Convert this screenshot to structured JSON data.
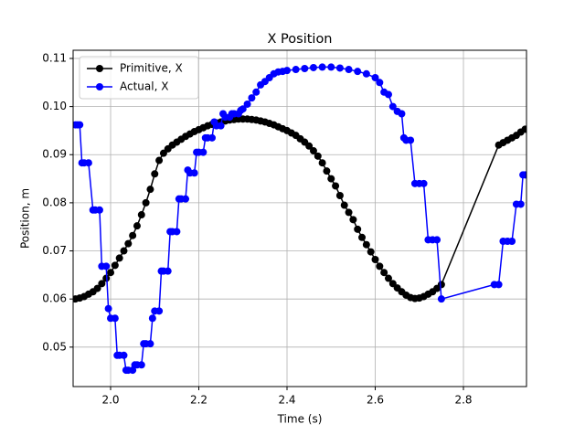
{
  "chart_data": {
    "type": "line",
    "title": "X Position",
    "xlabel": "Time (s)",
    "ylabel": "Position, m",
    "xlim": [
      1.915,
      2.943
    ],
    "ylim": [
      0.0418,
      0.1117
    ],
    "xticks": [
      {
        "value": 2.0,
        "label": "2.0"
      },
      2.2,
      2.4,
      2.6,
      2.8
    ],
    "yticks": [
      0.05,
      0.06,
      0.07,
      0.08,
      0.09,
      {
        "value": 0.1,
        "label": "0.10"
      },
      0.11
    ],
    "grid": true,
    "legend": "upper left",
    "series": [
      {
        "name": "Primitive, X",
        "color": "#000000",
        "x": [
          1.92,
          1.93,
          1.94,
          1.95,
          1.96,
          1.97,
          1.98,
          1.99,
          2.0,
          2.01,
          2.02,
          2.03,
          2.04,
          2.05,
          2.06,
          2.07,
          2.08,
          2.09,
          2.1,
          2.11,
          2.12,
          2.13,
          2.14,
          2.15,
          2.16,
          2.17,
          2.18,
          2.19,
          2.2,
          2.21,
          2.22,
          2.23,
          2.24,
          2.25,
          2.26,
          2.27,
          2.28,
          2.29,
          2.3,
          2.31,
          2.32,
          2.33,
          2.34,
          2.35,
          2.36,
          2.37,
          2.38,
          2.39,
          2.4,
          2.41,
          2.42,
          2.43,
          2.44,
          2.45,
          2.46,
          2.47,
          2.48,
          2.49,
          2.5,
          2.51,
          2.52,
          2.53,
          2.54,
          2.55,
          2.56,
          2.57,
          2.58,
          2.59,
          2.6,
          2.61,
          2.62,
          2.63,
          2.64,
          2.65,
          2.66,
          2.67,
          2.68,
          2.69,
          2.7,
          2.71,
          2.72,
          2.73,
          2.74,
          2.75,
          2.88,
          2.89,
          2.9,
          2.91,
          2.92,
          2.93,
          2.94
        ],
        "values": [
          0.06,
          0.0602,
          0.0605,
          0.061,
          0.0615,
          0.0622,
          0.0632,
          0.0643,
          0.0655,
          0.067,
          0.0685,
          0.07,
          0.0715,
          0.0732,
          0.0752,
          0.0775,
          0.08,
          0.0828,
          0.086,
          0.0888,
          0.0903,
          0.0912,
          0.092,
          0.0926,
          0.0932,
          0.0938,
          0.0943,
          0.0948,
          0.0952,
          0.0956,
          0.096,
          0.0963,
          0.0966,
          0.0968,
          0.097,
          0.0972,
          0.0973,
          0.0974,
          0.0974,
          0.0974,
          0.0973,
          0.0972,
          0.097,
          0.0968,
          0.0965,
          0.0962,
          0.0958,
          0.0954,
          0.095,
          0.0945,
          0.094,
          0.0933,
          0.0926,
          0.0918,
          0.0908,
          0.0897,
          0.0883,
          0.0866,
          0.085,
          0.0835,
          0.0815,
          0.0795,
          0.078,
          0.0765,
          0.0745,
          0.0728,
          0.0713,
          0.0698,
          0.0682,
          0.0668,
          0.0655,
          0.0643,
          0.0632,
          0.0623,
          0.0615,
          0.0608,
          0.0603,
          0.0601,
          0.0602,
          0.0605,
          0.061,
          0.0615,
          0.0622,
          0.063,
          0.092,
          0.0925,
          0.093,
          0.0935,
          0.094,
          0.0947,
          0.0953
        ]
      },
      {
        "name": "Actual, X",
        "color": "#0000ff",
        "x": [
          1.92,
          1.925,
          1.93,
          1.935,
          1.94,
          1.95,
          1.96,
          1.965,
          1.975,
          1.98,
          1.99,
          1.995,
          2.0,
          2.01,
          2.015,
          2.02,
          2.03,
          2.035,
          2.04,
          2.05,
          2.055,
          2.06,
          2.07,
          2.075,
          2.08,
          2.09,
          2.095,
          2.1,
          2.11,
          2.115,
          2.12,
          2.13,
          2.135,
          2.14,
          2.15,
          2.155,
          2.16,
          2.17,
          2.175,
          2.18,
          2.19,
          2.195,
          2.2,
          2.21,
          2.215,
          2.22,
          2.23,
          2.235,
          2.24,
          2.25,
          2.255,
          2.26,
          2.27,
          2.275,
          2.28,
          2.29,
          2.295,
          2.3,
          2.31,
          2.32,
          2.33,
          2.34,
          2.35,
          2.36,
          2.37,
          2.38,
          2.39,
          2.4,
          2.42,
          2.44,
          2.46,
          2.48,
          2.5,
          2.52,
          2.54,
          2.56,
          2.58,
          2.6,
          2.61,
          2.62,
          2.63,
          2.64,
          2.65,
          2.66,
          2.665,
          2.67,
          2.68,
          2.69,
          2.7,
          2.71,
          2.72,
          2.73,
          2.74,
          2.75,
          2.87,
          2.88,
          2.89,
          2.9,
          2.91,
          2.92,
          2.93,
          2.935,
          2.94
        ],
        "values": [
          0.0962,
          0.0962,
          0.0962,
          0.0883,
          0.0883,
          0.0883,
          0.0785,
          0.0785,
          0.0785,
          0.0668,
          0.0668,
          0.058,
          0.056,
          0.056,
          0.0483,
          0.0483,
          0.0483,
          0.0452,
          0.0452,
          0.0452,
          0.0463,
          0.0463,
          0.0463,
          0.0507,
          0.0507,
          0.0507,
          0.056,
          0.0575,
          0.0575,
          0.0658,
          0.0658,
          0.0658,
          0.074,
          0.074,
          0.074,
          0.0808,
          0.0808,
          0.0808,
          0.0868,
          0.0862,
          0.0862,
          0.0905,
          0.0905,
          0.0905,
          0.0935,
          0.0935,
          0.0935,
          0.0968,
          0.096,
          0.096,
          0.0985,
          0.0978,
          0.0978,
          0.0985,
          0.0985,
          0.0985,
          0.0992,
          0.0995,
          0.1005,
          0.1018,
          0.103,
          0.1045,
          0.1052,
          0.106,
          0.1068,
          0.1072,
          0.1073,
          0.1075,
          0.1077,
          0.1079,
          0.1081,
          0.1082,
          0.1082,
          0.108,
          0.1077,
          0.1073,
          0.1068,
          0.106,
          0.105,
          0.103,
          0.1025,
          0.1,
          0.099,
          0.0985,
          0.0935,
          0.093,
          0.093,
          0.084,
          0.084,
          0.084,
          0.0723,
          0.0723,
          0.0723,
          0.06,
          0.063,
          0.063,
          0.072,
          0.072,
          0.072,
          0.0797,
          0.0797,
          0.0858,
          0.0858
        ]
      }
    ]
  }
}
